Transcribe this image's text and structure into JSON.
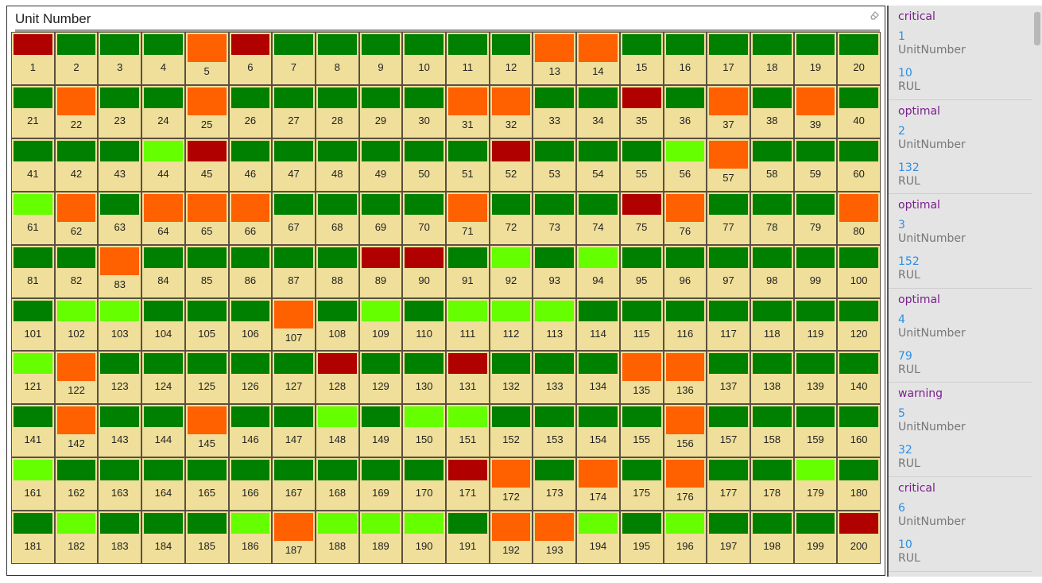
{
  "panel": {
    "title": "Unit Number"
  },
  "colors": {
    "critical": "#b00000",
    "warning": "#ff6000",
    "optimal": "#008000",
    "good": "#66ff00",
    "tile": "#f0df9a"
  },
  "units": [
    {
      "n": "1",
      "s": "critical"
    },
    {
      "n": "2",
      "s": "optimal"
    },
    {
      "n": "3",
      "s": "optimal"
    },
    {
      "n": "4",
      "s": "optimal"
    },
    {
      "n": "5",
      "s": "warning"
    },
    {
      "n": "6",
      "s": "critical"
    },
    {
      "n": "7",
      "s": "optimal"
    },
    {
      "n": "8",
      "s": "optimal"
    },
    {
      "n": "9",
      "s": "optimal"
    },
    {
      "n": "10",
      "s": "optimal"
    },
    {
      "n": "11",
      "s": "optimal"
    },
    {
      "n": "12",
      "s": "optimal"
    },
    {
      "n": "13",
      "s": "warning"
    },
    {
      "n": "14",
      "s": "warning"
    },
    {
      "n": "15",
      "s": "optimal"
    },
    {
      "n": "16",
      "s": "optimal"
    },
    {
      "n": "17",
      "s": "optimal"
    },
    {
      "n": "18",
      "s": "optimal"
    },
    {
      "n": "19",
      "s": "optimal"
    },
    {
      "n": "20",
      "s": "optimal"
    },
    {
      "n": "21",
      "s": "optimal"
    },
    {
      "n": "22",
      "s": "warning"
    },
    {
      "n": "23",
      "s": "optimal"
    },
    {
      "n": "24",
      "s": "optimal"
    },
    {
      "n": "25",
      "s": "warning"
    },
    {
      "n": "26",
      "s": "optimal"
    },
    {
      "n": "27",
      "s": "optimal"
    },
    {
      "n": "28",
      "s": "optimal"
    },
    {
      "n": "29",
      "s": "optimal"
    },
    {
      "n": "30",
      "s": "optimal"
    },
    {
      "n": "31",
      "s": "warning"
    },
    {
      "n": "32",
      "s": "warning"
    },
    {
      "n": "33",
      "s": "optimal"
    },
    {
      "n": "34",
      "s": "optimal"
    },
    {
      "n": "35",
      "s": "critical"
    },
    {
      "n": "36",
      "s": "optimal"
    },
    {
      "n": "37",
      "s": "warning"
    },
    {
      "n": "38",
      "s": "optimal"
    },
    {
      "n": "39",
      "s": "warning"
    },
    {
      "n": "40",
      "s": "optimal"
    },
    {
      "n": "41",
      "s": "optimal"
    },
    {
      "n": "42",
      "s": "optimal"
    },
    {
      "n": "43",
      "s": "optimal"
    },
    {
      "n": "44",
      "s": "good"
    },
    {
      "n": "45",
      "s": "critical"
    },
    {
      "n": "46",
      "s": "optimal"
    },
    {
      "n": "47",
      "s": "optimal"
    },
    {
      "n": "48",
      "s": "optimal"
    },
    {
      "n": "49",
      "s": "optimal"
    },
    {
      "n": "50",
      "s": "optimal"
    },
    {
      "n": "51",
      "s": "optimal"
    },
    {
      "n": "52",
      "s": "critical"
    },
    {
      "n": "53",
      "s": "optimal"
    },
    {
      "n": "54",
      "s": "optimal"
    },
    {
      "n": "55",
      "s": "optimal"
    },
    {
      "n": "56",
      "s": "good"
    },
    {
      "n": "57",
      "s": "warning"
    },
    {
      "n": "58",
      "s": "optimal"
    },
    {
      "n": "59",
      "s": "optimal"
    },
    {
      "n": "60",
      "s": "optimal"
    },
    {
      "n": "61",
      "s": "good"
    },
    {
      "n": "62",
      "s": "warning"
    },
    {
      "n": "63",
      "s": "optimal"
    },
    {
      "n": "64",
      "s": "warning"
    },
    {
      "n": "65",
      "s": "warning"
    },
    {
      "n": "66",
      "s": "warning"
    },
    {
      "n": "67",
      "s": "optimal"
    },
    {
      "n": "68",
      "s": "optimal"
    },
    {
      "n": "69",
      "s": "optimal"
    },
    {
      "n": "70",
      "s": "optimal"
    },
    {
      "n": "71",
      "s": "warning"
    },
    {
      "n": "72",
      "s": "optimal"
    },
    {
      "n": "73",
      "s": "optimal"
    },
    {
      "n": "74",
      "s": "optimal"
    },
    {
      "n": "75",
      "s": "critical"
    },
    {
      "n": "76",
      "s": "warning"
    },
    {
      "n": "77",
      "s": "optimal"
    },
    {
      "n": "78",
      "s": "optimal"
    },
    {
      "n": "79",
      "s": "optimal"
    },
    {
      "n": "80",
      "s": "warning"
    },
    {
      "n": "81",
      "s": "optimal"
    },
    {
      "n": "82",
      "s": "optimal"
    },
    {
      "n": "83",
      "s": "warning"
    },
    {
      "n": "84",
      "s": "optimal"
    },
    {
      "n": "85",
      "s": "optimal"
    },
    {
      "n": "86",
      "s": "optimal"
    },
    {
      "n": "87",
      "s": "optimal"
    },
    {
      "n": "88",
      "s": "optimal"
    },
    {
      "n": "89",
      "s": "critical"
    },
    {
      "n": "90",
      "s": "critical"
    },
    {
      "n": "91",
      "s": "optimal"
    },
    {
      "n": "92",
      "s": "good"
    },
    {
      "n": "93",
      "s": "optimal"
    },
    {
      "n": "94",
      "s": "good"
    },
    {
      "n": "95",
      "s": "optimal"
    },
    {
      "n": "96",
      "s": "optimal"
    },
    {
      "n": "97",
      "s": "optimal"
    },
    {
      "n": "98",
      "s": "optimal"
    },
    {
      "n": "99",
      "s": "optimal"
    },
    {
      "n": "100",
      "s": "optimal"
    },
    {
      "n": "101",
      "s": "optimal"
    },
    {
      "n": "102",
      "s": "good"
    },
    {
      "n": "103",
      "s": "good"
    },
    {
      "n": "104",
      "s": "optimal"
    },
    {
      "n": "105",
      "s": "optimal"
    },
    {
      "n": "106",
      "s": "optimal"
    },
    {
      "n": "107",
      "s": "warning"
    },
    {
      "n": "108",
      "s": "optimal"
    },
    {
      "n": "109",
      "s": "good"
    },
    {
      "n": "110",
      "s": "optimal"
    },
    {
      "n": "111",
      "s": "good"
    },
    {
      "n": "112",
      "s": "good"
    },
    {
      "n": "113",
      "s": "good"
    },
    {
      "n": "114",
      "s": "optimal"
    },
    {
      "n": "115",
      "s": "optimal"
    },
    {
      "n": "116",
      "s": "optimal"
    },
    {
      "n": "117",
      "s": "optimal"
    },
    {
      "n": "118",
      "s": "optimal"
    },
    {
      "n": "119",
      "s": "optimal"
    },
    {
      "n": "120",
      "s": "optimal"
    },
    {
      "n": "121",
      "s": "good"
    },
    {
      "n": "122",
      "s": "warning"
    },
    {
      "n": "123",
      "s": "optimal"
    },
    {
      "n": "124",
      "s": "optimal"
    },
    {
      "n": "125",
      "s": "optimal"
    },
    {
      "n": "126",
      "s": "optimal"
    },
    {
      "n": "127",
      "s": "optimal"
    },
    {
      "n": "128",
      "s": "critical"
    },
    {
      "n": "129",
      "s": "optimal"
    },
    {
      "n": "130",
      "s": "optimal"
    },
    {
      "n": "131",
      "s": "critical"
    },
    {
      "n": "132",
      "s": "optimal"
    },
    {
      "n": "133",
      "s": "optimal"
    },
    {
      "n": "134",
      "s": "optimal"
    },
    {
      "n": "135",
      "s": "warning"
    },
    {
      "n": "136",
      "s": "warning"
    },
    {
      "n": "137",
      "s": "optimal"
    },
    {
      "n": "138",
      "s": "optimal"
    },
    {
      "n": "139",
      "s": "optimal"
    },
    {
      "n": "140",
      "s": "optimal"
    },
    {
      "n": "141",
      "s": "optimal"
    },
    {
      "n": "142",
      "s": "warning"
    },
    {
      "n": "143",
      "s": "optimal"
    },
    {
      "n": "144",
      "s": "optimal"
    },
    {
      "n": "145",
      "s": "warning"
    },
    {
      "n": "146",
      "s": "optimal"
    },
    {
      "n": "147",
      "s": "optimal"
    },
    {
      "n": "148",
      "s": "good"
    },
    {
      "n": "149",
      "s": "optimal"
    },
    {
      "n": "150",
      "s": "good"
    },
    {
      "n": "151",
      "s": "good"
    },
    {
      "n": "152",
      "s": "optimal"
    },
    {
      "n": "153",
      "s": "optimal"
    },
    {
      "n": "154",
      "s": "optimal"
    },
    {
      "n": "155",
      "s": "optimal"
    },
    {
      "n": "156",
      "s": "warning"
    },
    {
      "n": "157",
      "s": "optimal"
    },
    {
      "n": "158",
      "s": "optimal"
    },
    {
      "n": "159",
      "s": "optimal"
    },
    {
      "n": "160",
      "s": "optimal"
    },
    {
      "n": "161",
      "s": "good"
    },
    {
      "n": "162",
      "s": "optimal"
    },
    {
      "n": "163",
      "s": "optimal"
    },
    {
      "n": "164",
      "s": "optimal"
    },
    {
      "n": "165",
      "s": "optimal"
    },
    {
      "n": "166",
      "s": "optimal"
    },
    {
      "n": "167",
      "s": "optimal"
    },
    {
      "n": "168",
      "s": "optimal"
    },
    {
      "n": "169",
      "s": "optimal"
    },
    {
      "n": "170",
      "s": "optimal"
    },
    {
      "n": "171",
      "s": "critical"
    },
    {
      "n": "172",
      "s": "warning"
    },
    {
      "n": "173",
      "s": "optimal"
    },
    {
      "n": "174",
      "s": "warning"
    },
    {
      "n": "175",
      "s": "optimal"
    },
    {
      "n": "176",
      "s": "warning"
    },
    {
      "n": "177",
      "s": "optimal"
    },
    {
      "n": "178",
      "s": "optimal"
    },
    {
      "n": "179",
      "s": "good"
    },
    {
      "n": "180",
      "s": "optimal"
    },
    {
      "n": "181",
      "s": "optimal"
    },
    {
      "n": "182",
      "s": "good"
    },
    {
      "n": "183",
      "s": "optimal"
    },
    {
      "n": "184",
      "s": "optimal"
    },
    {
      "n": "185",
      "s": "optimal"
    },
    {
      "n": "186",
      "s": "good"
    },
    {
      "n": "187",
      "s": "warning"
    },
    {
      "n": "188",
      "s": "good"
    },
    {
      "n": "189",
      "s": "good"
    },
    {
      "n": "190",
      "s": "good"
    },
    {
      "n": "191",
      "s": "optimal"
    },
    {
      "n": "192",
      "s": "warning"
    },
    {
      "n": "193",
      "s": "warning"
    },
    {
      "n": "194",
      "s": "good"
    },
    {
      "n": "195",
      "s": "optimal"
    },
    {
      "n": "196",
      "s": "good"
    },
    {
      "n": "197",
      "s": "optimal"
    },
    {
      "n": "198",
      "s": "optimal"
    },
    {
      "n": "199",
      "s": "optimal"
    },
    {
      "n": "200",
      "s": "critical"
    }
  ],
  "side_list": [
    {
      "status": "critical",
      "unit": "1",
      "unit_label": "UnitNumber",
      "rul": "10",
      "rul_label": "RUL"
    },
    {
      "status": "optimal",
      "unit": "2",
      "unit_label": "UnitNumber",
      "rul": "132",
      "rul_label": "RUL"
    },
    {
      "status": "optimal",
      "unit": "3",
      "unit_label": "UnitNumber",
      "rul": "152",
      "rul_label": "RUL"
    },
    {
      "status": "optimal",
      "unit": "4",
      "unit_label": "UnitNumber",
      "rul": "79",
      "rul_label": "RUL"
    },
    {
      "status": "warning",
      "unit": "5",
      "unit_label": "UnitNumber",
      "rul": "32",
      "rul_label": "RUL"
    },
    {
      "status": "critical",
      "unit": "6",
      "unit_label": "UnitNumber",
      "rul": "10",
      "rul_label": "RUL"
    }
  ]
}
